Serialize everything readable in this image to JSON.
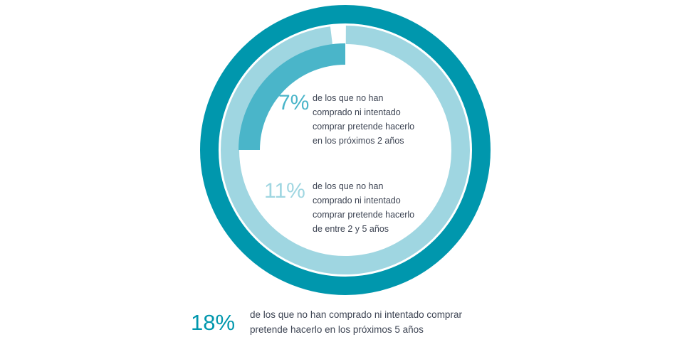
{
  "chart_data": {
    "type": "donut",
    "rings": [
      {
        "label": "18%",
        "value": 18,
        "fill_fraction": 1.0,
        "color": "#0097ad",
        "text": [
          "de los que no han comprado ni intentado comprar",
          "pretende hacerlo en los próximos 5 años"
        ]
      },
      {
        "label": "11%",
        "value": 11,
        "fill_fraction": 0.98,
        "color": "#9fd6e1",
        "text": [
          "de los que no han",
          "comprado ni intentado",
          "comprar pretende hacerlo",
          "de entre 2 y 5 años"
        ]
      },
      {
        "label": "7%",
        "value": 7,
        "fill_fraction": 0.25,
        "color": "#4ab5c9",
        "text": [
          "de los que no han",
          "comprado ni intentado",
          "comprar pretende hacerlo",
          "en los próximos 2 años"
        ]
      }
    ]
  },
  "colors": {
    "outer": "#0097ad",
    "middle": "#9fd6e1",
    "inner": "#4ab5c9",
    "text": "#3d4453"
  }
}
